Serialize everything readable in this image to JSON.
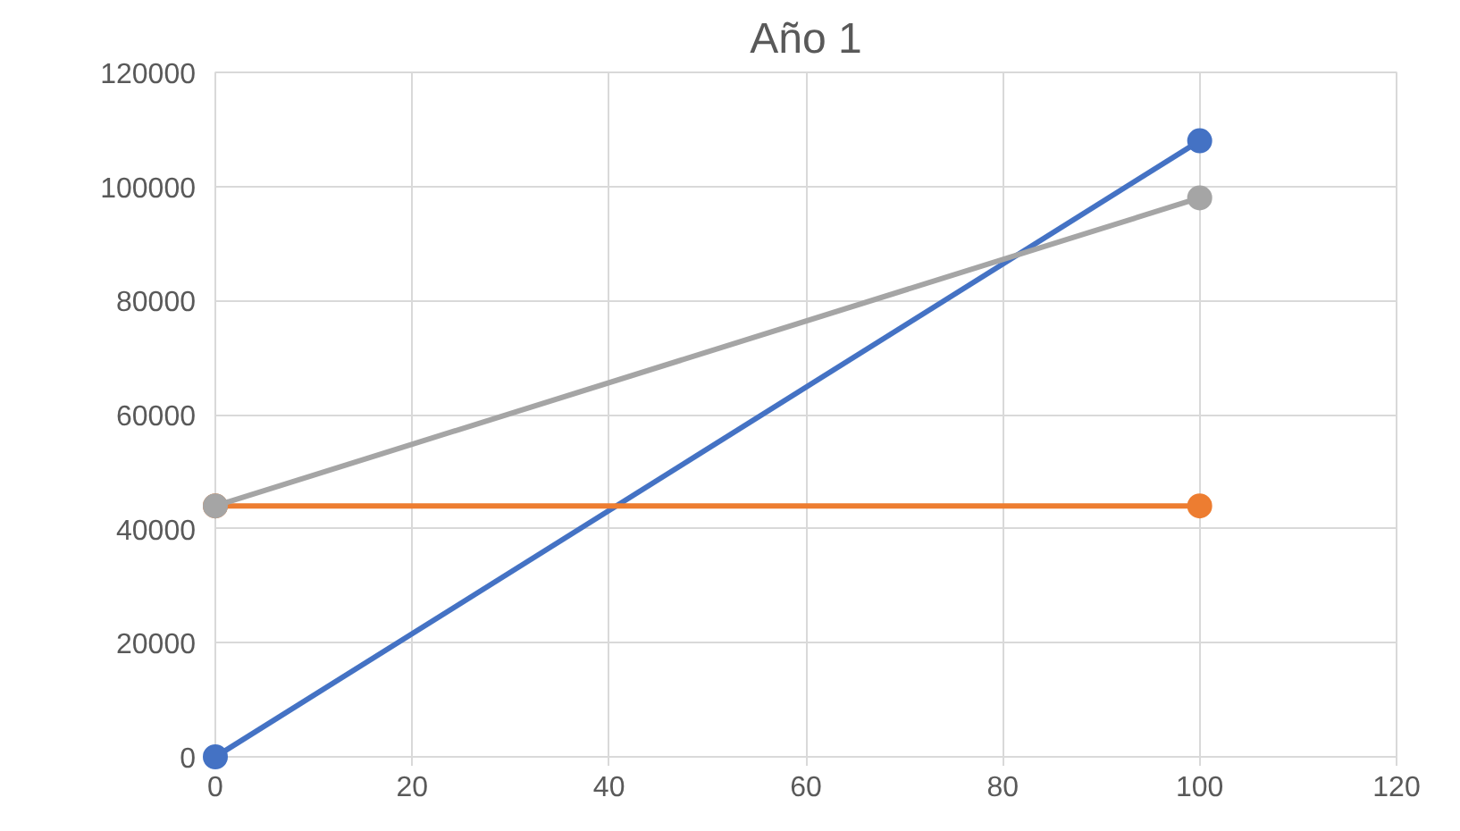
{
  "chart_data": {
    "type": "line",
    "title": "Año 1",
    "x": [
      0,
      100
    ],
    "series": [
      {
        "color": "#4472c4",
        "values": [
          0,
          108000
        ]
      },
      {
        "color": "#ed7d31",
        "values": [
          44000,
          44000
        ]
      },
      {
        "color": "#a5a5a5",
        "values": [
          44000,
          98000
        ]
      }
    ],
    "xlim": [
      0,
      120
    ],
    "xticks": [
      0,
      20,
      40,
      60,
      80,
      100,
      120
    ],
    "ylim": [
      0,
      120000
    ],
    "yticks": [
      0,
      20000,
      40000,
      60000,
      80000,
      100000,
      120000
    ],
    "grid": true,
    "marker": "circle",
    "line_style": "solid"
  }
}
